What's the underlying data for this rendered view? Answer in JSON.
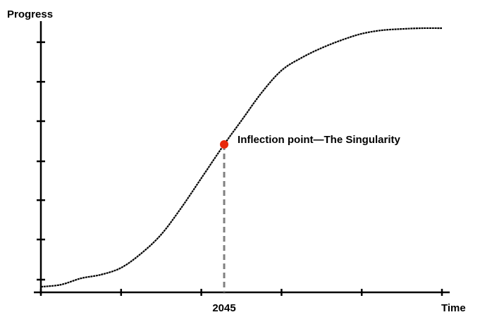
{
  "chart_data": {
    "type": "line",
    "title": "",
    "xlabel": "Time",
    "ylabel": "Progress",
    "xlim": [
      0,
      10
    ],
    "ylim": [
      0,
      100
    ],
    "x_ticks": [
      0,
      2,
      4,
      6,
      8,
      10
    ],
    "y_ticks": [
      4.8,
      20,
      34.9,
      49.6,
      64.8,
      79.7,
      94.7
    ],
    "grid": false,
    "series": [
      {
        "name": "Progress",
        "color": "#000000",
        "x": [
          0,
          0.5,
          1,
          1.5,
          2,
          2.5,
          3,
          3.5,
          4,
          4.57,
          5,
          5.5,
          6,
          6.5,
          7,
          7.5,
          8,
          8.5,
          9,
          9.5,
          10
        ],
        "y": [
          2.1,
          2.9,
          5.3,
          6.7,
          9.3,
          14.7,
          21.9,
          32,
          43.2,
          56,
          65,
          75.5,
          84,
          88.8,
          92.5,
          95.5,
          97.9,
          99.2,
          99.7,
          100,
          100
        ]
      }
    ],
    "annotation": {
      "x": 4.57,
      "y": 56,
      "x_label": "2045",
      "text": "Inflection point—The Singularity",
      "marker_color": "#e8290b",
      "guide_color": "#808080"
    }
  }
}
